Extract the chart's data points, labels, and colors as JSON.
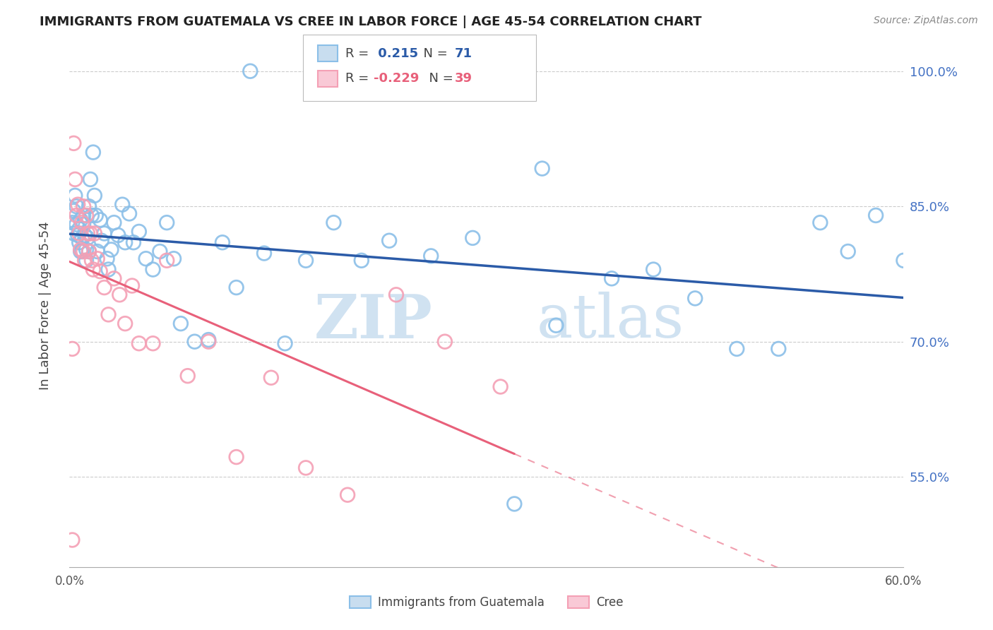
{
  "title": "IMMIGRANTS FROM GUATEMALA VS CREE IN LABOR FORCE | AGE 45-54 CORRELATION CHART",
  "source": "Source: ZipAtlas.com",
  "ylabel": "In Labor Force | Age 45-54",
  "xmin": 0.0,
  "xmax": 0.6,
  "ymin": 0.45,
  "ymax": 1.03,
  "yticks": [
    0.55,
    0.7,
    0.85,
    1.0
  ],
  "ytick_labels": [
    "55.0%",
    "70.0%",
    "85.0%",
    "100.0%"
  ],
  "xticks": [
    0.0,
    0.1,
    0.2,
    0.3,
    0.4,
    0.5,
    0.6
  ],
  "xtick_labels": [
    "0.0%",
    "",
    "",
    "",
    "",
    "",
    "60.0%"
  ],
  "r_guatemala": 0.215,
  "n_guatemala": 71,
  "r_cree": -0.229,
  "n_cree": 39,
  "color_guatemala": "#8BBFE8",
  "color_cree": "#F4A0B5",
  "color_line_guatemala": "#2B5BA8",
  "color_line_cree": "#E8607A",
  "watermark_zip": "ZIP",
  "watermark_atlas": "atlas",
  "guatemala_x": [
    0.002,
    0.003,
    0.003,
    0.004,
    0.005,
    0.005,
    0.006,
    0.007,
    0.007,
    0.008,
    0.008,
    0.009,
    0.009,
    0.01,
    0.01,
    0.011,
    0.012,
    0.012,
    0.013,
    0.014,
    0.014,
    0.015,
    0.016,
    0.017,
    0.018,
    0.019,
    0.02,
    0.022,
    0.023,
    0.025,
    0.027,
    0.028,
    0.03,
    0.032,
    0.035,
    0.038,
    0.04,
    0.043,
    0.046,
    0.05,
    0.055,
    0.06,
    0.065,
    0.07,
    0.075,
    0.08,
    0.09,
    0.1,
    0.11,
    0.12,
    0.14,
    0.155,
    0.17,
    0.19,
    0.21,
    0.23,
    0.26,
    0.29,
    0.32,
    0.35,
    0.39,
    0.42,
    0.45,
    0.48,
    0.51,
    0.54,
    0.56,
    0.58,
    0.6,
    0.34,
    0.13
  ],
  "guatemala_y": [
    0.832,
    0.845,
    0.82,
    0.862,
    0.85,
    0.83,
    0.818,
    0.825,
    0.81,
    0.835,
    0.8,
    0.815,
    0.8,
    0.83,
    0.84,
    0.818,
    0.802,
    0.79,
    0.815,
    0.8,
    0.85,
    0.88,
    0.84,
    0.91,
    0.862,
    0.84,
    0.8,
    0.835,
    0.812,
    0.82,
    0.792,
    0.78,
    0.802,
    0.832,
    0.818,
    0.852,
    0.81,
    0.842,
    0.81,
    0.822,
    0.792,
    0.78,
    0.8,
    0.832,
    0.792,
    0.72,
    0.7,
    0.702,
    0.81,
    0.76,
    0.798,
    0.698,
    0.79,
    0.832,
    0.79,
    0.812,
    0.795,
    0.815,
    0.52,
    0.718,
    0.77,
    0.78,
    0.748,
    0.692,
    0.692,
    0.832,
    0.8,
    0.84,
    0.79,
    0.892,
    1.0
  ],
  "cree_x": [
    0.002,
    0.003,
    0.004,
    0.005,
    0.006,
    0.007,
    0.008,
    0.009,
    0.01,
    0.01,
    0.011,
    0.012,
    0.013,
    0.014,
    0.015,
    0.016,
    0.017,
    0.018,
    0.02,
    0.022,
    0.025,
    0.028,
    0.032,
    0.036,
    0.04,
    0.045,
    0.05,
    0.06,
    0.07,
    0.085,
    0.1,
    0.12,
    0.145,
    0.17,
    0.2,
    0.235,
    0.27,
    0.31,
    0.002
  ],
  "cree_y": [
    0.48,
    0.92,
    0.88,
    0.84,
    0.852,
    0.82,
    0.802,
    0.832,
    0.8,
    0.85,
    0.79,
    0.84,
    0.82,
    0.8,
    0.82,
    0.79,
    0.78,
    0.82,
    0.792,
    0.778,
    0.76,
    0.73,
    0.77,
    0.752,
    0.72,
    0.762,
    0.698,
    0.698,
    0.79,
    0.662,
    0.7,
    0.572,
    0.66,
    0.56,
    0.53,
    0.752,
    0.7,
    0.65,
    0.692
  ]
}
